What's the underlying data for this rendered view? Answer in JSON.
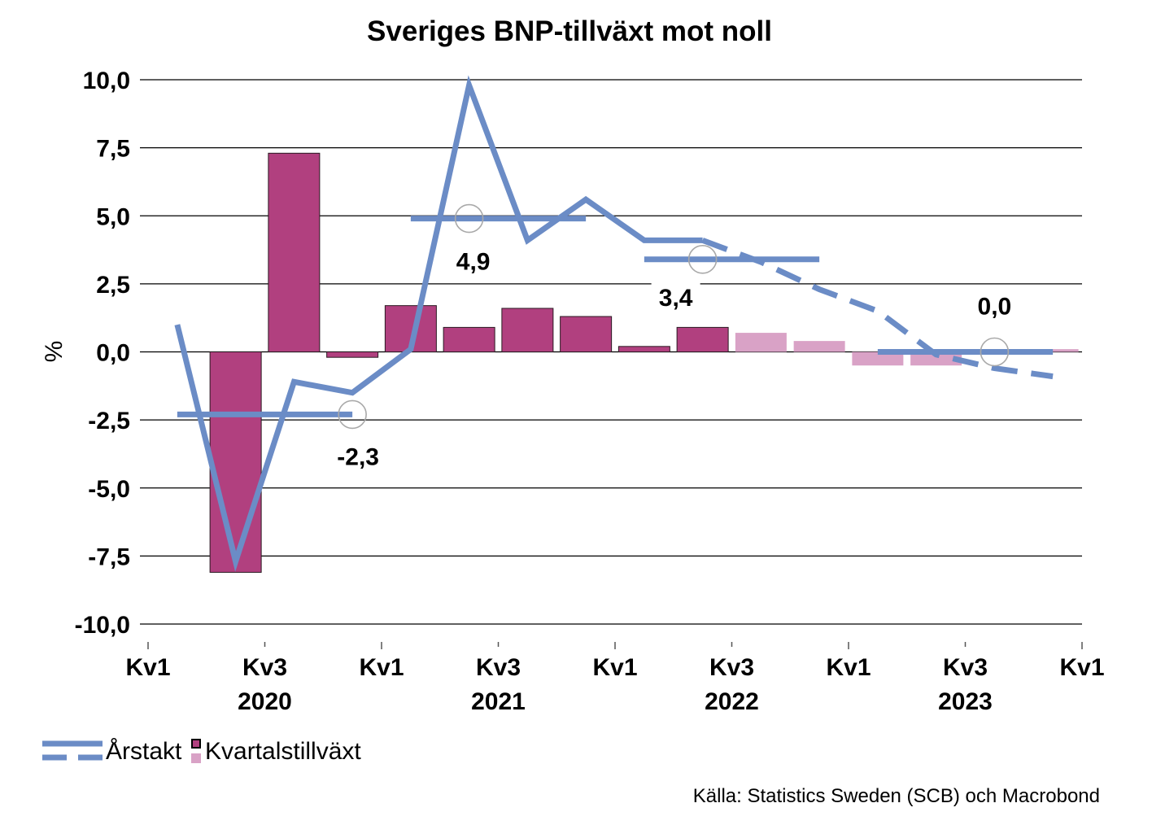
{
  "chart_data": {
    "type": "bar",
    "title": "Sveriges BNP-tillväxt mot noll",
    "ylabel": "%",
    "ylim": [
      -10,
      10
    ],
    "xlim": [
      2020,
      2024
    ],
    "grid": true,
    "y_ticks": [
      {
        "value": 10,
        "label": "10,0"
      },
      {
        "value": 7.5,
        "label": "7,5"
      },
      {
        "value": 5,
        "label": "5,0"
      },
      {
        "value": 2.5,
        "label": "2,5"
      },
      {
        "value": 0,
        "label": "0,0"
      },
      {
        "value": -2.5,
        "label": "-2,5"
      },
      {
        "value": -5,
        "label": "-5,0"
      },
      {
        "value": -7.5,
        "label": "-7,5"
      },
      {
        "value": -10,
        "label": "-10,0"
      }
    ],
    "x_ticks": [
      {
        "x": 2020,
        "label": "Kv1"
      },
      {
        "x": 2020.5,
        "label": "Kv3",
        "year": "2020"
      },
      {
        "x": 2021,
        "label": "Kv1"
      },
      {
        "x": 2021.5,
        "label": "Kv3",
        "year": "2021"
      },
      {
        "x": 2022,
        "label": "Kv1"
      },
      {
        "x": 2022.5,
        "label": "Kv3",
        "year": "2022"
      },
      {
        "x": 2023,
        "label": "Kv1"
      },
      {
        "x": 2023.5,
        "label": "Kv3",
        "year": "2023"
      },
      {
        "x": 2024,
        "label": "Kv1"
      }
    ],
    "x": [
      2020,
      2020.25,
      2020.5,
      2020.75,
      2021,
      2021.25,
      2021.5,
      2021.75,
      2022,
      2022.25,
      2022.5,
      2022.75,
      2023,
      2023.25,
      2023.5,
      2023.75
    ],
    "series": [
      {
        "name": "Kvartalstillväxt",
        "type": "bar",
        "values": [
          null,
          -8.1,
          7.3,
          -0.2,
          1.7,
          0.9,
          1.6,
          1.3,
          0.2,
          0.9,
          0.7,
          0.4,
          -0.5,
          -0.5,
          0.0,
          0.1
        ],
        "forecast_from": 2022.5,
        "color": "#b1407f",
        "forecast_color": "#d9a2c6"
      },
      {
        "name": "Årstakt",
        "type": "line",
        "values": [
          1.0,
          -7.7,
          -1.1,
          -1.5,
          0.1,
          9.8,
          4.1,
          5.6,
          4.1,
          4.1,
          3.3,
          2.3,
          1.5,
          -0.1,
          -0.6,
          -0.9
        ],
        "forecast_from": 2022.25,
        "color": "#6b8cc6"
      }
    ],
    "annual_averages": [
      {
        "from": 2020,
        "to": 2020.75,
        "value": -2.3,
        "label": "-2,3"
      },
      {
        "from": 2021,
        "to": 2021.75,
        "value": 4.9,
        "label": "4,9"
      },
      {
        "from": 2022,
        "to": 2022.75,
        "value": 3.4,
        "label": "3,4"
      },
      {
        "from": 2023,
        "to": 2023.75,
        "value": 0.0,
        "label": "0,0"
      }
    ],
    "legend": "bottom-left"
  },
  "source": "Källa: Statistics Sweden (SCB) och Macrobond"
}
